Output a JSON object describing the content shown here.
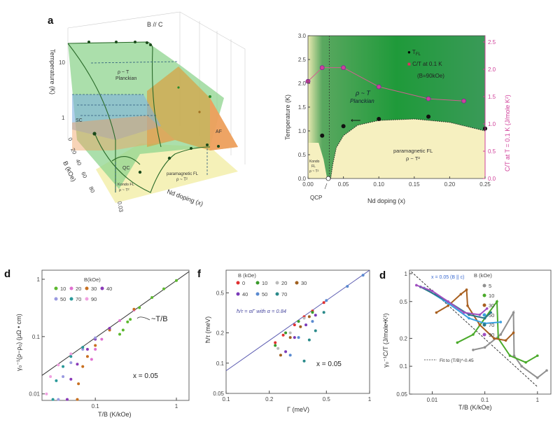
{
  "chart_data": [
    {
      "panel_label": "a",
      "type": "3d-phase-diagram",
      "annotation": "B // C",
      "zlabel": "Temperature (K)",
      "zscale": "log",
      "zticks": [
        "1",
        "10"
      ],
      "ylabel": "B (kOe)",
      "yticks": [
        "0",
        "20",
        "40",
        "60",
        "80"
      ],
      "xlabel": "Nd doping (x)",
      "xticks": [
        "0.03"
      ],
      "regions": {
        "planckian_1": "ρ ~ T",
        "planckian_2": "Planckian",
        "sc": "SC",
        "af": "AF",
        "qc": "QC",
        "pfl_1": "paramagnetic FL",
        "pfl_2": "ρ ~ T²",
        "kfl_1": "Kondo FL",
        "kfl_2": "ρ ~ T²"
      },
      "colors": {
        "planckian": "#8fd48f",
        "sc": "#7fb0e0",
        "af": "#f0a060",
        "fl": "#f4f0b0"
      }
    },
    {
      "type": "scatter",
      "xlabel": "Nd doping (x)",
      "ylabel": "Temperature (K)",
      "y2label": "C/T at T = 0.1 K (J/mole K²)",
      "xlim": [
        0,
        0.25
      ],
      "ylim": [
        0,
        3.0
      ],
      "y2lim": [
        0,
        2.5
      ],
      "xticks": [
        "0.00",
        "0.05",
        "0.10",
        "0.15",
        "0.20",
        "0.25"
      ],
      "yticks": [
        "0.0",
        "0.5",
        "1.0",
        "1.5",
        "2.0",
        "2.5",
        "3.0"
      ],
      "y2ticks": [
        "0.0",
        "0.5",
        "1.0",
        "1.5",
        "2.0",
        "2.5"
      ],
      "legend": {
        "tfl": "T",
        "tfl_sub": "FL",
        "ct": "C/T at 0.1 K",
        "field": "(B=90kOe)"
      },
      "legend_placement": "top-right",
      "series": [
        {
          "name": "T_FL",
          "axis": "left",
          "color": "#111111",
          "x": [
            0.02,
            0.05,
            0.1,
            0.17,
            0.25
          ],
          "y": [
            0.9,
            1.1,
            1.25,
            1.3,
            1.05
          ]
        },
        {
          "name": "C/T at 0.1 K",
          "axis": "right",
          "color": "#d0409a",
          "x": [
            0.0,
            0.02,
            0.05,
            0.1,
            0.17,
            0.22
          ],
          "y": [
            1.78,
            2.03,
            2.03,
            1.68,
            1.46,
            1.42
          ]
        }
      ],
      "regions": {
        "planckian_1": "ρ ~ T",
        "planckian_2": "Planckian",
        "pfl_1": "paramagnetic FL",
        "pfl_2": "ρ ~ T²",
        "kfl_1": "Kondo",
        "kfl_2": "FL",
        "kfl_3": "ρ ~ T²",
        "qcp": "QCP"
      },
      "colors": {
        "planckian": "#2e9a45",
        "fl": "#f6f0c0",
        "ct": "#d0409a"
      }
    },
    {
      "panel_label": "d",
      "type": "scatter",
      "xscale": "log",
      "yscale": "log",
      "xlabel": "T/B (K/kOe)",
      "ylabel": "γ₀⁻¹(ρ−ρ₀) (μΩ • cm)",
      "xlim": [
        0.022,
        1.43
      ],
      "ylim": [
        0.0077,
        1.44
      ],
      "xticks": [
        "0.1",
        "1"
      ],
      "yticks": [
        "0.01",
        "0.1",
        "1"
      ],
      "legend_title": "B(kOe)",
      "annotation": "~T/B",
      "doping_label": "x = 0.05",
      "fit_line": {
        "x": [
          0.022,
          1.43
        ],
        "y": [
          0.021,
          1.36
        ]
      },
      "series": [
        {
          "name": "10",
          "color": "#5cb82e",
          "points": [
            [
              0.2,
              0.11
            ],
            [
              0.22,
              0.13
            ],
            [
              0.25,
              0.18
            ],
            [
              0.27,
              0.2
            ],
            [
              0.35,
              0.32
            ],
            [
              0.5,
              0.48
            ],
            [
              0.7,
              0.68
            ],
            [
              1,
              0.95
            ]
          ]
        },
        {
          "name": "20",
          "color": "#e070d0",
          "points": [
            [
              0.09,
              0.04
            ],
            [
              0.1,
              0.06
            ],
            [
              0.12,
              0.09
            ],
            [
              0.15,
              0.13
            ],
            [
              0.2,
              0.19
            ],
            [
              0.3,
              0.29
            ]
          ]
        },
        {
          "name": "30",
          "color": "#c87020",
          "points": [
            [
              0.06,
              0.008
            ],
            [
              0.062,
              0.015
            ],
            [
              0.07,
              0.03
            ],
            [
              0.08,
              0.045
            ],
            [
              0.1,
              0.07
            ],
            [
              0.15,
              0.13
            ],
            [
              0.3,
              0.3
            ]
          ]
        },
        {
          "name": "40",
          "color": "#8a3ab8",
          "points": [
            [
              0.045,
              0.008
            ],
            [
              0.05,
              0.018
            ],
            [
              0.06,
              0.033
            ],
            [
              0.08,
              0.06
            ],
            [
              0.1,
              0.09
            ],
            [
              0.15,
              0.14
            ]
          ]
        },
        {
          "name": "50",
          "color": "#9a9ae0",
          "points": [
            [
              0.035,
              0.008
            ],
            [
              0.04,
              0.02
            ],
            [
              0.05,
              0.035
            ],
            [
              0.07,
              0.06
            ],
            [
              0.1,
              0.095
            ]
          ]
        },
        {
          "name": "70",
          "color": "#2a9a9a",
          "points": [
            [
              0.03,
              0.008
            ],
            [
              0.033,
              0.017
            ],
            [
              0.04,
              0.03
            ],
            [
              0.05,
              0.045
            ],
            [
              0.07,
              0.065
            ]
          ]
        },
        {
          "name": "90",
          "color": "#f0a0e0",
          "points": [
            [
              0.025,
              0.01
            ],
            [
              0.028,
              0.02
            ],
            [
              0.035,
              0.032
            ],
            [
              0.05,
              0.05
            ]
          ]
        }
      ]
    },
    {
      "panel_label": "f",
      "type": "scatter",
      "xscale": "log",
      "yscale": "log",
      "xlabel": "Γ (meV)",
      "ylabel": "ħ/τ (meV)",
      "xlim": [
        0.1,
        1
      ],
      "ylim": [
        0.05,
        0.84
      ],
      "xticks": [
        "0.1",
        "0.2",
        "0.5",
        "1"
      ],
      "yticks": [
        "0.05",
        "0.1",
        "0.2",
        "0.5"
      ],
      "legend_title": "B (kOe)",
      "annotation": "ħ/τ = αΓ with α = 0.84",
      "doping_label": "x = 0.05",
      "fit_line": {
        "x": [
          0.1,
          1
        ],
        "y": [
          0.084,
          0.84
        ]
      },
      "series": [
        {
          "name": "0",
          "color": "#e03030",
          "points": [
            [
              0.22,
              0.16
            ],
            [
              0.25,
              0.19
            ],
            [
              0.3,
              0.24
            ],
            [
              0.35,
              0.29
            ],
            [
              0.4,
              0.33
            ],
            [
              0.48,
              0.4
            ]
          ]
        },
        {
          "name": "10",
          "color": "#3a9a2a",
          "points": [
            [
              0.22,
              0.15
            ],
            [
              0.26,
              0.2
            ],
            [
              0.32,
              0.26
            ],
            [
              0.4,
              0.32
            ]
          ]
        },
        {
          "name": "20",
          "color": "#bbbbbb",
          "points": [
            [
              0.23,
              0.14
            ],
            [
              0.28,
              0.2
            ],
            [
              0.35,
              0.28
            ]
          ]
        },
        {
          "name": "30",
          "color": "#a06020",
          "points": [
            [
              0.24,
              0.12
            ],
            [
              0.28,
              0.18
            ],
            [
              0.33,
              0.23
            ],
            [
              0.38,
              0.29
            ]
          ]
        },
        {
          "name": "40",
          "color": "#7a3ab8",
          "points": [
            [
              0.26,
              0.13
            ],
            [
              0.3,
              0.18
            ],
            [
              0.36,
              0.24
            ],
            [
              0.42,
              0.3
            ]
          ]
        },
        {
          "name": "50",
          "color": "#5a8ad0",
          "points": [
            [
              0.28,
              0.12
            ],
            [
              0.32,
              0.18
            ],
            [
              0.4,
              0.26
            ],
            [
              0.5,
              0.42
            ],
            [
              0.7,
              0.58
            ],
            [
              0.9,
              0.75
            ]
          ]
        },
        {
          "name": "70",
          "color": "#2a8a8a",
          "points": [
            [
              0.35,
              0.105
            ],
            [
              0.38,
              0.17
            ],
            [
              0.42,
              0.21
            ],
            [
              0.48,
              0.32
            ]
          ]
        }
      ]
    },
    {
      "panel_label": "d",
      "type": "line",
      "xscale": "log",
      "yscale": "log",
      "xlabel": "T/B (K/kOe)",
      "ylabel": "γ₀⁻¹C/T (J/mole•K²)",
      "xlim": [
        0.0037,
        1.8
      ],
      "ylim": [
        0.05,
        1.09
      ],
      "xticks": [
        "0.01",
        "0.1",
        "1"
      ],
      "yticks": [
        "0.05",
        "0.1",
        "0.2",
        "0.5",
        "1"
      ],
      "legend_title": "B (kOe)",
      "annotation": "x = 0.05 (B || c)",
      "fit_label": "Fit to (T/B)^-0.45",
      "fit_line": {
        "x": [
          0.004,
          1
        ],
        "y": [
          1.05,
          0.06
        ]
      },
      "series": [
        {
          "name": "5",
          "color": "#909090",
          "points": [
            [
              0.06,
              0.15
            ],
            [
              0.1,
              0.16
            ],
            [
              0.2,
              0.22
            ],
            [
              0.35,
              0.38
            ],
            [
              0.36,
              0.13
            ],
            [
              0.5,
              0.1
            ],
            [
              1,
              0.075
            ],
            [
              1.5,
              0.09
            ]
          ]
        },
        {
          "name": "10",
          "color": "#4aaa2a",
          "points": [
            [
              0.03,
              0.18
            ],
            [
              0.06,
              0.22
            ],
            [
              0.1,
              0.33
            ],
            [
              0.17,
              0.5
            ],
            [
              0.18,
              0.2
            ],
            [
              0.3,
              0.13
            ],
            [
              0.6,
              0.11
            ],
            [
              1,
              0.13
            ]
          ]
        },
        {
          "name": "30",
          "color": "#a86020",
          "points": [
            [
              0.012,
              0.38
            ],
            [
              0.02,
              0.45
            ],
            [
              0.035,
              0.6
            ],
            [
              0.045,
              0.67
            ],
            [
              0.047,
              0.45
            ],
            [
              0.08,
              0.28
            ],
            [
              0.15,
              0.2
            ],
            [
              0.25,
              0.19
            ],
            [
              0.35,
              0.23
            ]
          ]
        },
        {
          "name": "50",
          "color": "#3aa0e0",
          "points": [
            [
              0.007,
              0.7
            ],
            [
              0.02,
              0.48
            ],
            [
              0.05,
              0.33
            ],
            [
              0.1,
              0.29
            ],
            [
              0.2,
              0.3
            ]
          ]
        },
        {
          "name": "70",
          "color": "#2a7a8a",
          "points": [
            [
              0.006,
              0.72
            ],
            [
              0.02,
              0.5
            ],
            [
              0.05,
              0.36
            ],
            [
              0.1,
              0.33
            ],
            [
              0.13,
              0.38
            ]
          ]
        },
        {
          "name": "90",
          "color": "#a050c0",
          "points": [
            [
              0.005,
              0.75
            ],
            [
              0.01,
              0.65
            ],
            [
              0.02,
              0.5
            ],
            [
              0.04,
              0.38
            ],
            [
              0.08,
              0.36
            ],
            [
              0.11,
              0.42
            ]
          ]
        }
      ]
    }
  ]
}
